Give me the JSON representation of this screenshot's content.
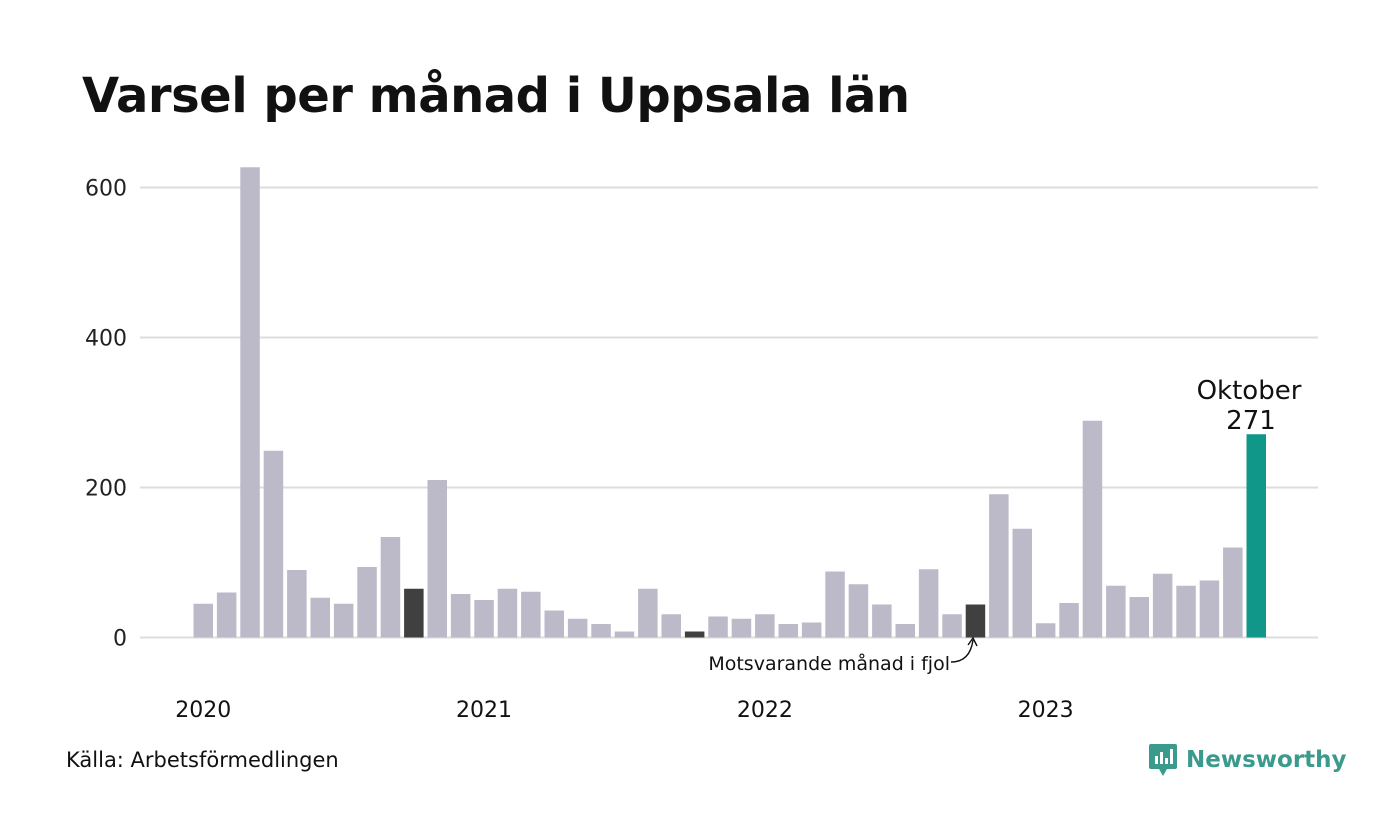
{
  "title": "Varsel per månad i Uppsala län",
  "source": "Källa: Arbetsförmedlingen",
  "brand": {
    "name": "Newsworthy",
    "icon": "newsworthy-logo-icon",
    "color": "#3a9a8c"
  },
  "colors": {
    "bar": "#bcbac9",
    "previous": "#404040",
    "current": "#11968a",
    "grid": "#dddddd"
  },
  "annotations": {
    "highlight_month": "Oktober",
    "highlight_value": "271",
    "previous_label": "Motsvarande månad i fjol"
  },
  "chart_data": {
    "type": "bar",
    "title": "Varsel per månad i Uppsala län",
    "xlabel": "",
    "ylabel": "",
    "ylim": [
      0,
      650
    ],
    "yticks": [
      0,
      200,
      400,
      600
    ],
    "year_labels": [
      "2020",
      "2021",
      "2022",
      "2023"
    ],
    "grid": true,
    "legend": "none",
    "categories": [
      "2020-01",
      "2020-02",
      "2020-03",
      "2020-04",
      "2020-05",
      "2020-06",
      "2020-07",
      "2020-08",
      "2020-09",
      "2020-10",
      "2020-11",
      "2020-12",
      "2021-01",
      "2021-02",
      "2021-03",
      "2021-04",
      "2021-05",
      "2021-06",
      "2021-07",
      "2021-08",
      "2021-09",
      "2021-10",
      "2021-11",
      "2021-12",
      "2022-01",
      "2022-02",
      "2022-03",
      "2022-04",
      "2022-05",
      "2022-06",
      "2022-07",
      "2022-08",
      "2022-09",
      "2022-10",
      "2022-11",
      "2022-12",
      "2023-01",
      "2023-02",
      "2023-03",
      "2023-04",
      "2023-05",
      "2023-06",
      "2023-07",
      "2023-08",
      "2023-09",
      "2023-10"
    ],
    "values": [
      45,
      60,
      627,
      249,
      90,
      53,
      45,
      94,
      134,
      65,
      210,
      58,
      50,
      65,
      61,
      36,
      25,
      18,
      8,
      65,
      31,
      8,
      28,
      25,
      31,
      18,
      20,
      88,
      71,
      44,
      18,
      91,
      31,
      44,
      191,
      145,
      19,
      46,
      289,
      69,
      54,
      85,
      69,
      76,
      120,
      271
    ],
    "previous_year_index": [
      9,
      21,
      33
    ],
    "current_index": 45
  }
}
